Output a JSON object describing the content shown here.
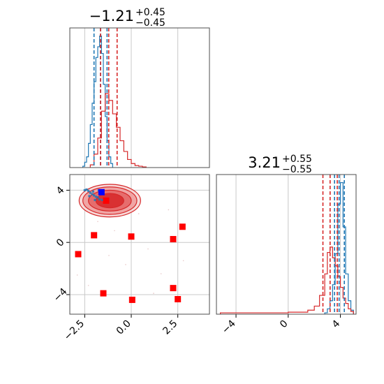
{
  "chart_data": [
    {
      "type": "histogram",
      "panel": "top-left",
      "title": {
        "value": "−1.21",
        "plus": "+0.45",
        "minus": "−0.45"
      },
      "xlim": [
        -3.3,
        4.2
      ],
      "grid": true,
      "series": [
        {
          "color": "#1f77b4",
          "bins": [
            -2.6,
            -2.5,
            -2.4,
            -2.3,
            -2.2,
            -2.1,
            -2.0,
            -1.9,
            -1.8,
            -1.7,
            -1.6,
            -1.5,
            -1.4,
            -1.3,
            -1.2,
            -1.1,
            -1.0
          ],
          "counts": [
            0.01,
            0.04,
            0.08,
            0.18,
            0.32,
            0.48,
            0.64,
            0.82,
            0.9,
            0.98,
            0.85,
            0.62,
            0.38,
            0.2,
            0.08,
            0.03,
            0.0
          ],
          "quantiles": [
            -2.0,
            -1.65,
            -1.3
          ]
        },
        {
          "color": "#d62728",
          "bins": [
            -2.2,
            -2.0,
            -1.8,
            -1.6,
            -1.4,
            -1.2,
            -1.0,
            -0.8,
            -0.6,
            -0.4,
            -0.2,
            0.0,
            0.2,
            0.4,
            0.6,
            0.8
          ],
          "counts": [
            0.02,
            0.1,
            0.22,
            0.42,
            0.55,
            0.5,
            0.4,
            0.3,
            0.2,
            0.12,
            0.06,
            0.03,
            0.015,
            0.01,
            0.005,
            0.0
          ],
          "quantiles": [
            -1.65,
            -1.21,
            -0.76
          ]
        }
      ]
    },
    {
      "type": "scatter-contour",
      "panel": "bottom-left",
      "xlim": [
        -3.3,
        4.2
      ],
      "ylim": [
        -5.5,
        5.2
      ],
      "xticks": [
        "−2.5",
        "0.0",
        "2.5"
      ],
      "yticks": [
        "4",
        "0",
        "−4"
      ],
      "grid": true,
      "contour_center": [
        -1.15,
        3.2
      ],
      "contour_levels_radius": [
        [
          1.65,
          1.25
        ],
        [
          1.45,
          1.05
        ],
        [
          1.15,
          0.8
        ],
        [
          0.75,
          0.55
        ]
      ],
      "red_markers": [
        [
          -1.35,
          3.2
        ],
        [
          -2.0,
          0.55
        ],
        [
          0.0,
          0.45
        ],
        [
          2.75,
          1.2
        ],
        [
          2.25,
          0.25
        ],
        [
          -2.85,
          -0.9
        ],
        [
          -1.5,
          -3.9
        ],
        [
          2.25,
          -3.5
        ],
        [
          0.05,
          -4.4
        ],
        [
          2.5,
          -4.35
        ]
      ],
      "blue_markers": [
        [
          -1.6,
          3.85
        ]
      ],
      "blue_cluster": [
        [
          -2.5,
          4.0
        ],
        [
          -2.4,
          4.05
        ],
        [
          -2.3,
          3.95
        ],
        [
          -2.2,
          3.8
        ],
        [
          -2.1,
          3.7
        ],
        [
          -2.0,
          3.6
        ],
        [
          -1.9,
          3.5
        ],
        [
          -1.8,
          3.45
        ],
        [
          -1.7,
          3.3
        ],
        [
          -1.55,
          3.25
        ],
        [
          -1.45,
          3.35
        ],
        [
          -1.65,
          3.95
        ],
        [
          -1.75,
          4.0
        ],
        [
          -2.25,
          3.55
        ],
        [
          -2.05,
          3.9
        ],
        [
          -1.95,
          3.25
        ]
      ]
    },
    {
      "type": "histogram",
      "panel": "bottom-right",
      "title": {
        "value": "3.21",
        "plus": "+0.55",
        "minus": "−0.55"
      },
      "xlim": [
        -5.5,
        5.2
      ],
      "xticks": [
        "−4",
        "0",
        "4"
      ],
      "grid": true,
      "series": [
        {
          "color": "#1f77b4",
          "bins": [
            2.8,
            3.0,
            3.2,
            3.4,
            3.6,
            3.8,
            4.0,
            4.2,
            4.4,
            4.6,
            4.8,
            5.0
          ],
          "counts": [
            0.01,
            0.04,
            0.1,
            0.22,
            0.45,
            0.82,
            0.98,
            0.65,
            0.3,
            0.1,
            0.03,
            0.0
          ],
          "quantiles": [
            3.55,
            3.9,
            4.3
          ]
        },
        {
          "color": "#d62728",
          "bins": [
            -5.2,
            -4.0,
            -2.0,
            0.0,
            1.5,
            2.0,
            2.4,
            2.8,
            3.0,
            3.2,
            3.4,
            3.6,
            3.8,
            4.0,
            4.2,
            4.4,
            4.6,
            4.8,
            5.0
          ],
          "counts": [
            0.01,
            0.01,
            0.01,
            0.015,
            0.03,
            0.06,
            0.14,
            0.3,
            0.46,
            0.5,
            0.42,
            0.36,
            0.28,
            0.2,
            0.12,
            0.08,
            0.04,
            0.02,
            0.0
          ],
          "quantiles": [
            2.66,
            3.21,
            3.76
          ]
        }
      ]
    }
  ]
}
